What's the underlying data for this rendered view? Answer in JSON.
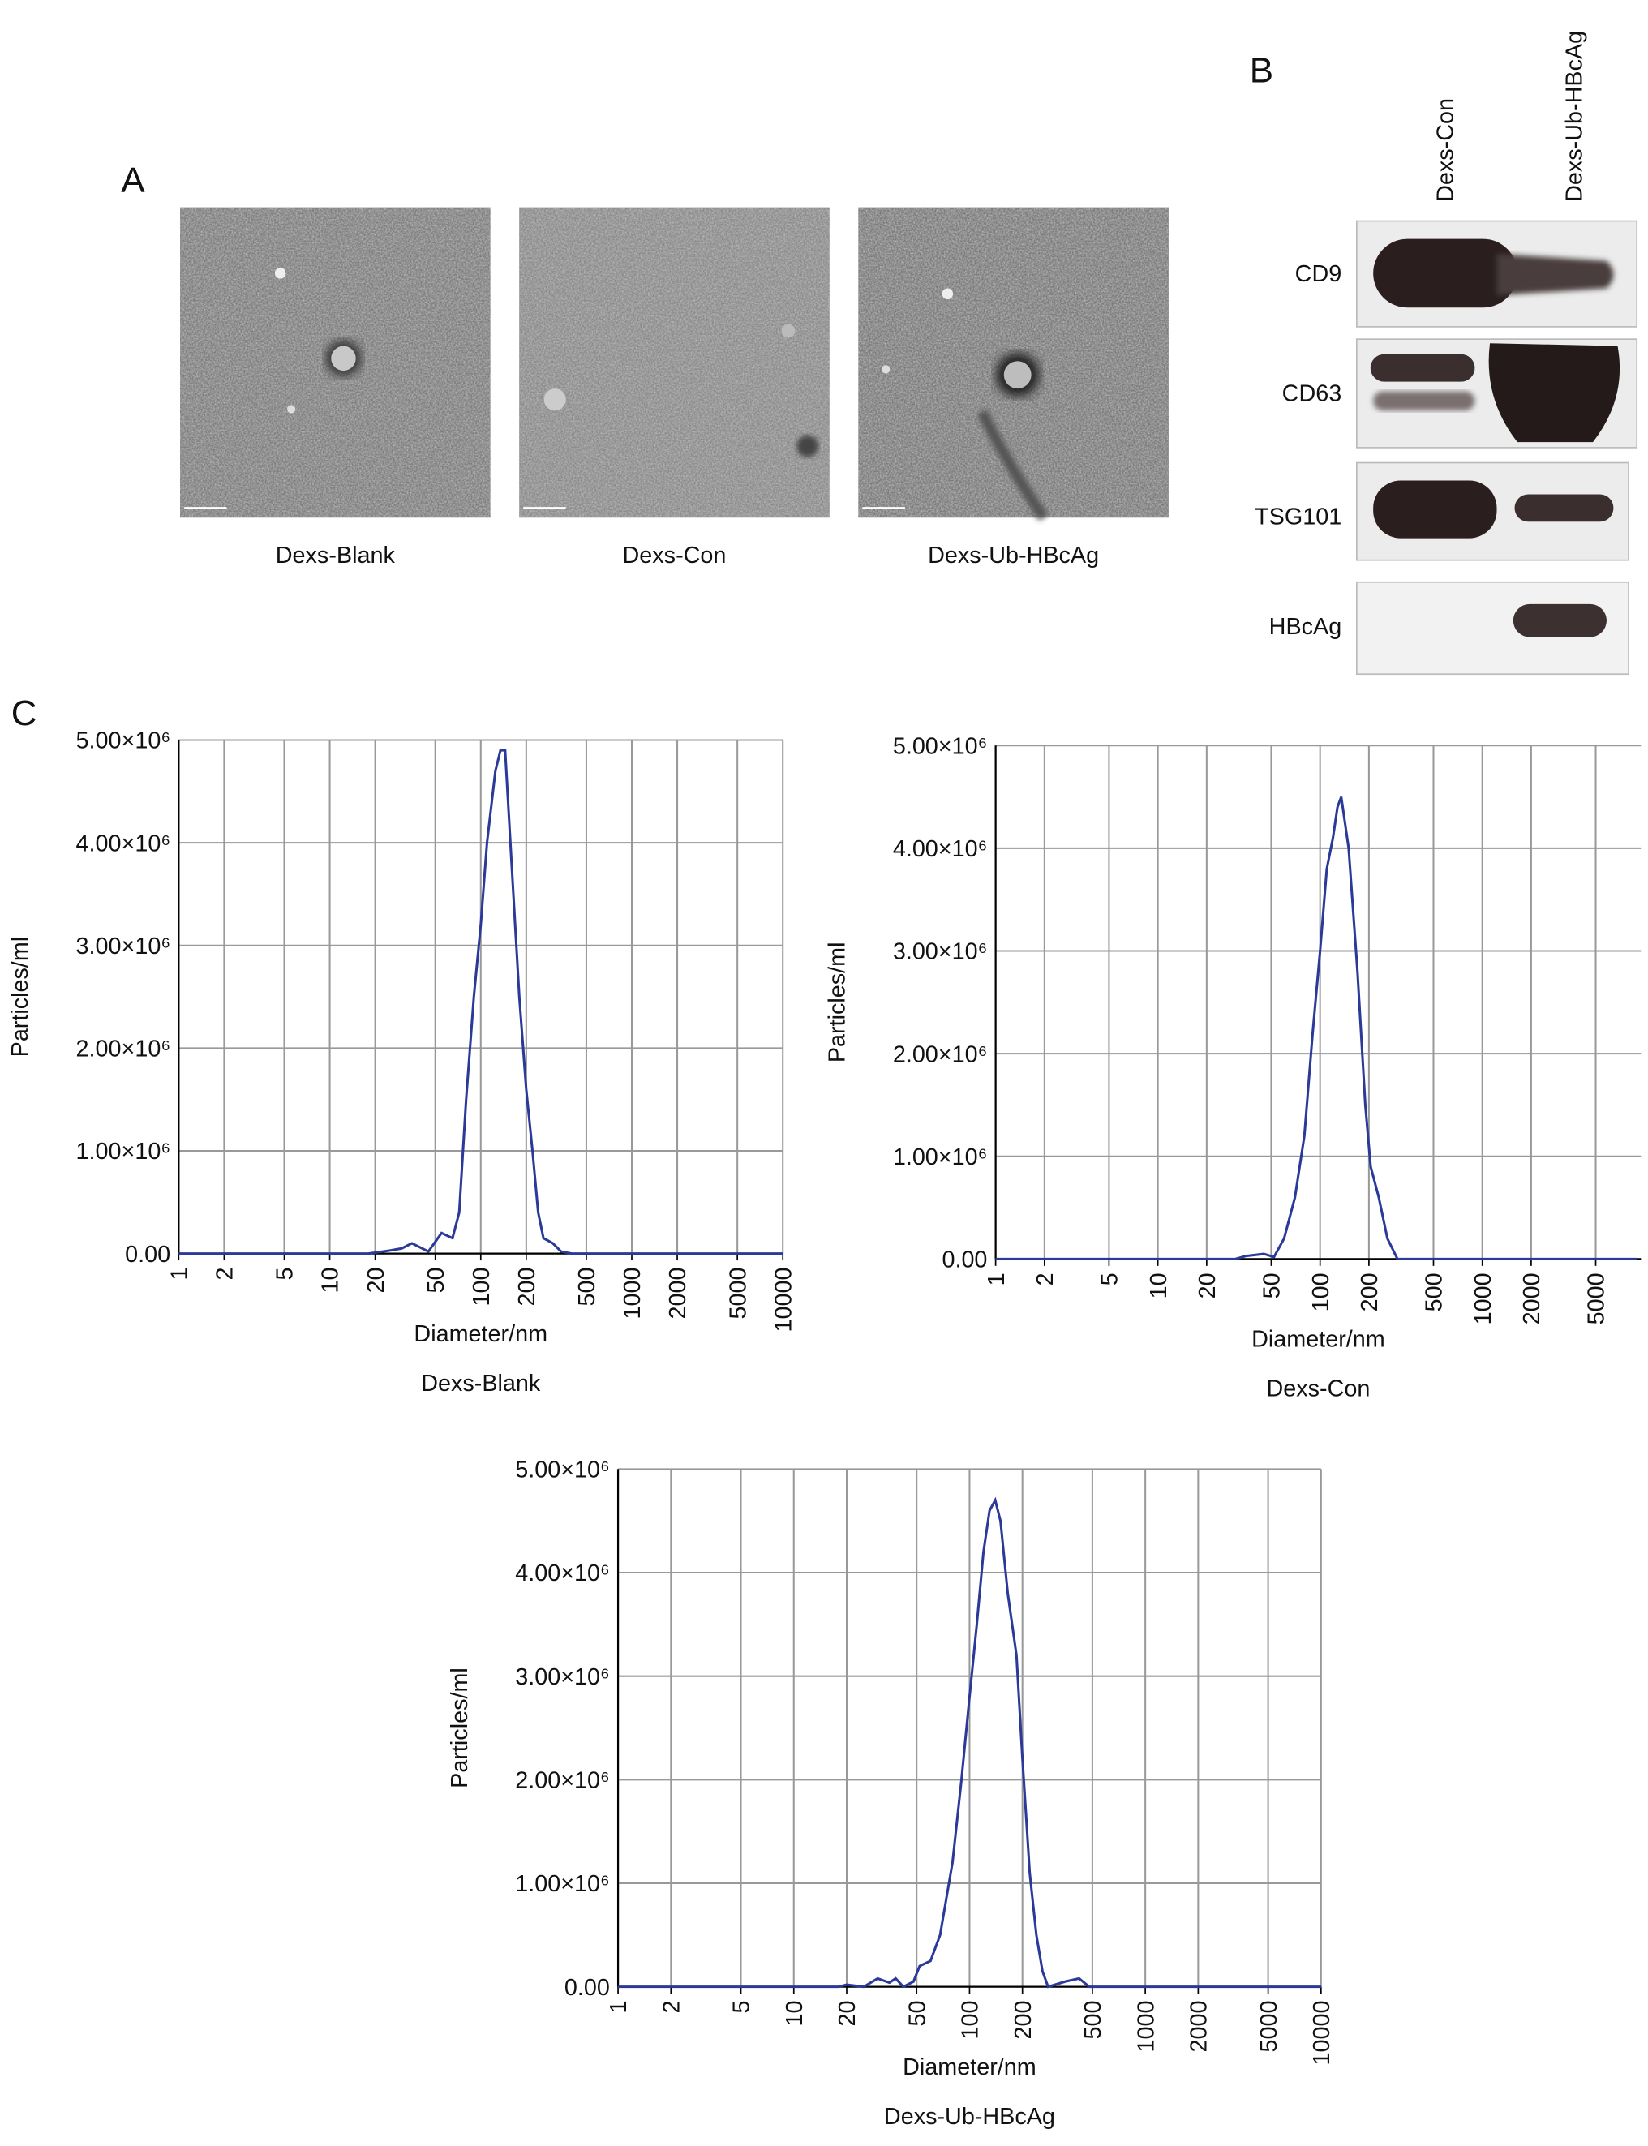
{
  "panels": {
    "a": "A",
    "b": "B",
    "c": "C"
  },
  "tem": {
    "captions": [
      "Dexs-Blank",
      "Dexs-Con",
      "Dexs-Ub-HBcAg"
    ]
  },
  "blot": {
    "lanes": [
      "Dexs-Con",
      "Dexs-Ub-HBcAg"
    ],
    "bands": [
      "CD9",
      "CD63",
      "TSG101",
      "HBcAg"
    ]
  },
  "chart_data": [
    {
      "type": "line",
      "title": "Dexs-Blank",
      "xlabel": "Diameter/nm",
      "ylabel": "Particles/ml",
      "xscale": "log",
      "grid": true,
      "x": [
        1,
        18,
        25,
        30,
        35,
        45,
        55,
        65,
        72,
        80,
        90,
        100,
        110,
        125,
        135,
        145,
        160,
        180,
        200,
        220,
        240,
        260,
        300,
        340,
        400,
        10000
      ],
      "series": [
        {
          "name": "Dexs-Blank",
          "color": "#2b3a99",
          "values": [
            0,
            0,
            30000,
            50000,
            100000,
            20000,
            200000,
            150000,
            400000,
            1500000,
            2500000,
            3200000,
            4000000,
            4700000,
            4900000,
            4900000,
            3800000,
            2500000,
            1600000,
            1000000,
            400000,
            150000,
            100000,
            20000,
            0,
            0
          ]
        }
      ],
      "xlim": [
        1,
        10000
      ],
      "ylim": [
        0,
        5000000
      ],
      "xticks": [
        1,
        2,
        5,
        10,
        20,
        50,
        100,
        200,
        500,
        1000,
        2000,
        5000,
        10000
      ],
      "yticks": [
        {
          "value": 0,
          "label": "0.00"
        },
        {
          "value": 1000000,
          "label": "1.00×10⁶"
        },
        {
          "value": 2000000,
          "label": "2.00×10⁶"
        },
        {
          "value": 3000000,
          "label": "3.00×10⁶"
        },
        {
          "value": 4000000,
          "label": "4.00×10⁶"
        },
        {
          "value": 5000000,
          "label": "5.00×10⁶"
        }
      ]
    },
    {
      "type": "line",
      "title": "Dexs-Con",
      "xlabel": "Diameter/nm",
      "ylabel": "Particles/ml",
      "xscale": "log",
      "grid": true,
      "x": [
        1,
        30,
        35,
        45,
        52,
        60,
        70,
        80,
        90,
        100,
        110,
        120,
        128,
        135,
        150,
        170,
        190,
        205,
        230,
        260,
        300,
        9000
      ],
      "series": [
        {
          "name": "Dexs-Con",
          "color": "#2b3a99",
          "values": [
            0,
            0,
            30000,
            50000,
            20000,
            200000,
            600000,
            1200000,
            2200000,
            3000000,
            3800000,
            4100000,
            4400000,
            4500000,
            4000000,
            2800000,
            1500000,
            900000,
            600000,
            200000,
            0,
            0
          ]
        }
      ],
      "xlim": [
        1,
        9500
      ],
      "ylim": [
        0,
        5000000
      ],
      "xticks": [
        1,
        2,
        5,
        10,
        20,
        50,
        100,
        200,
        500,
        1000,
        2000,
        5000
      ],
      "yticks": [
        {
          "value": 0,
          "label": "0.00"
        },
        {
          "value": 1000000,
          "label": "1.00×10⁶"
        },
        {
          "value": 2000000,
          "label": "2.00×10⁶"
        },
        {
          "value": 3000000,
          "label": "3.00×10⁶"
        },
        {
          "value": 4000000,
          "label": "4.00×10⁶"
        },
        {
          "value": 5000000,
          "label": "5.00×10⁶"
        }
      ]
    },
    {
      "type": "line",
      "title": "Dexs-Ub-HBcAg",
      "xlabel": "Diameter/nm",
      "ylabel": "Particles/ml",
      "xscale": "log",
      "grid": true,
      "x": [
        1,
        18,
        20,
        25,
        30,
        35,
        38,
        42,
        48,
        52,
        60,
        68,
        80,
        90,
        100,
        110,
        120,
        130,
        140,
        150,
        165,
        185,
        200,
        220,
        240,
        260,
        280,
        350,
        420,
        480,
        10000
      ],
      "series": [
        {
          "name": "Dexs-Ub-HBcAg",
          "color": "#2b3a99",
          "values": [
            0,
            0,
            20000,
            0,
            80000,
            40000,
            80000,
            0,
            50000,
            200000,
            250000,
            500000,
            1200000,
            2000000,
            2800000,
            3500000,
            4200000,
            4600000,
            4700000,
            4500000,
            3800000,
            3200000,
            2200000,
            1100000,
            500000,
            150000,
            0,
            50000,
            80000,
            0,
            0
          ]
        }
      ],
      "xlim": [
        1,
        10000
      ],
      "ylim": [
        0,
        5000000
      ],
      "xticks": [
        1,
        2,
        5,
        10,
        20,
        50,
        100,
        200,
        500,
        1000,
        2000,
        5000,
        10000
      ],
      "yticks": [
        {
          "value": 0,
          "label": "0.00"
        },
        {
          "value": 1000000,
          "label": "1.00×10⁶"
        },
        {
          "value": 2000000,
          "label": "2.00×10⁶"
        },
        {
          "value": 3000000,
          "label": "3.00×10⁶"
        },
        {
          "value": 4000000,
          "label": "4.00×10⁶"
        },
        {
          "value": 5000000,
          "label": "5.00×10⁶"
        }
      ]
    }
  ]
}
